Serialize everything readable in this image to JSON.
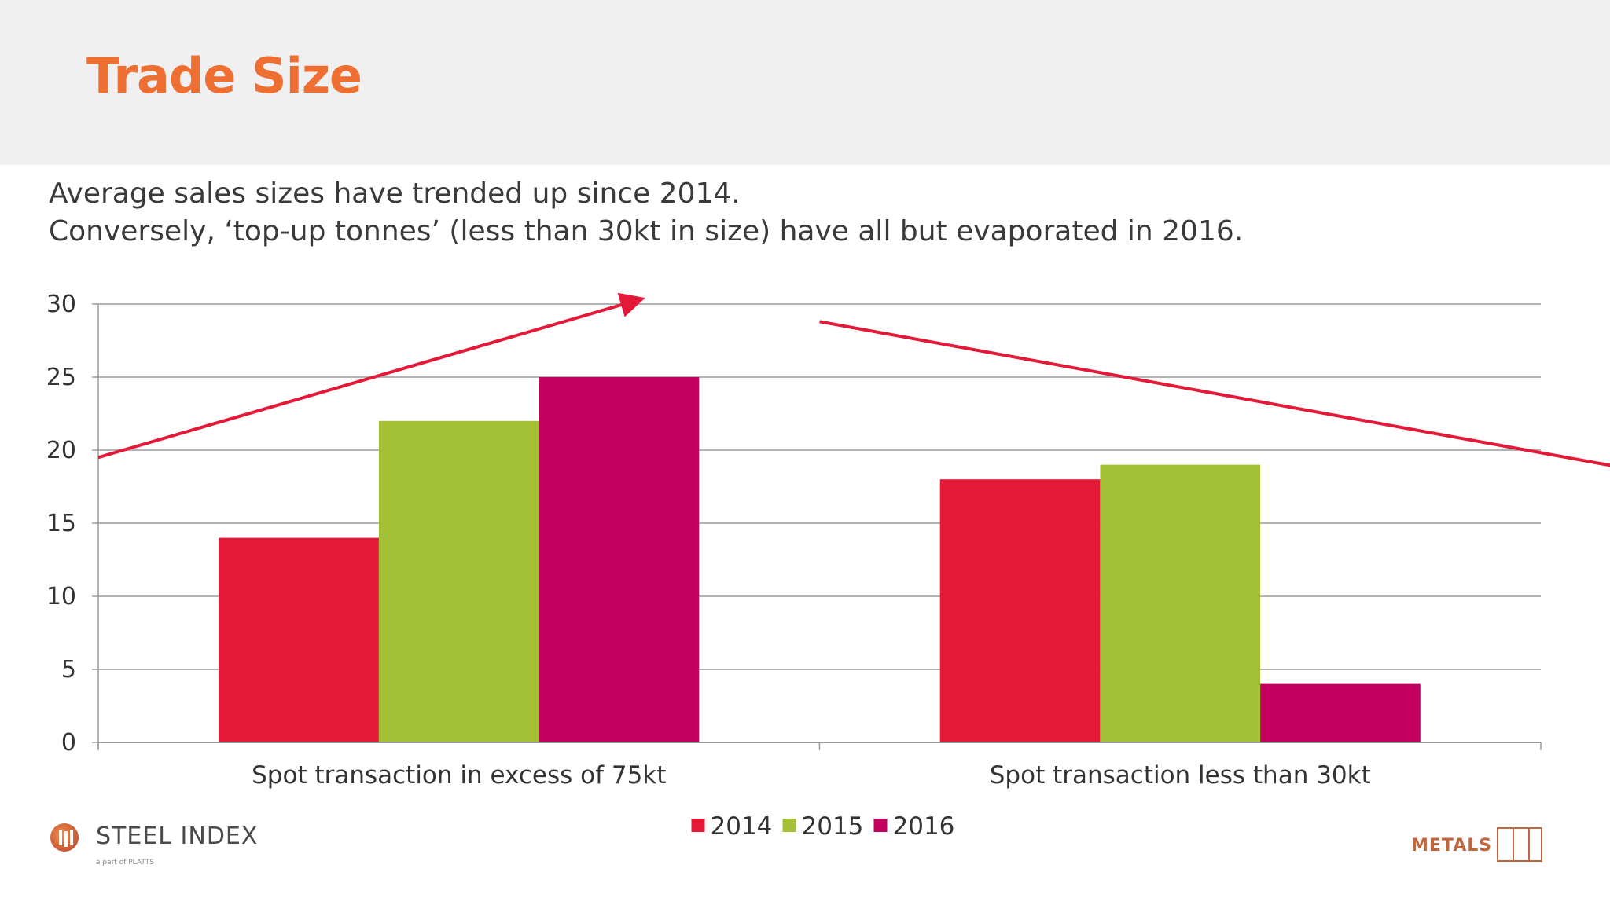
{
  "header": {
    "title": "Trade Size"
  },
  "subtitle_lines": [
    "Average sales sizes have trended up since 2014.",
    "Conversely, ‘top-up tonnes’ (less than 30kt in size) have all but evaporated in 2016."
  ],
  "chart_data": {
    "type": "bar",
    "categories": [
      "Spot transaction in excess of 75kt",
      "Spot transaction less than  30kt"
    ],
    "series": [
      {
        "name": "2014",
        "values": [
          14,
          18
        ],
        "color": "#e31937"
      },
      {
        "name": "2015",
        "values": [
          22,
          19
        ],
        "color": "#a4c037"
      },
      {
        "name": "2016",
        "values": [
          25,
          4
        ],
        "color": "#c30060"
      }
    ],
    "ylim": [
      0,
      30
    ],
    "yticks": [
      "0",
      "5",
      "10",
      "15",
      "20",
      "25",
      "30"
    ],
    "grid": true,
    "legend": "bottom-center",
    "annotations": [
      {
        "type": "arrow",
        "direction": "up",
        "from": [
          -0.5,
          19.5
        ],
        "to": [
          0.25,
          30.3
        ],
        "color": "#e31937"
      },
      {
        "type": "arrow",
        "direction": "down",
        "from": [
          0.5,
          28.8
        ],
        "to": [
          1.87,
          16.5
        ],
        "color": "#e31937"
      }
    ]
  },
  "footer": {
    "left_logo_text": "STEEL INDEX",
    "left_logo_tagline": "a part of PLATTS",
    "left_logo_icon": "steel-index-logo-icon",
    "right_logo_text": "METALS",
    "right_logo_icon": "metals-logo-icon"
  }
}
